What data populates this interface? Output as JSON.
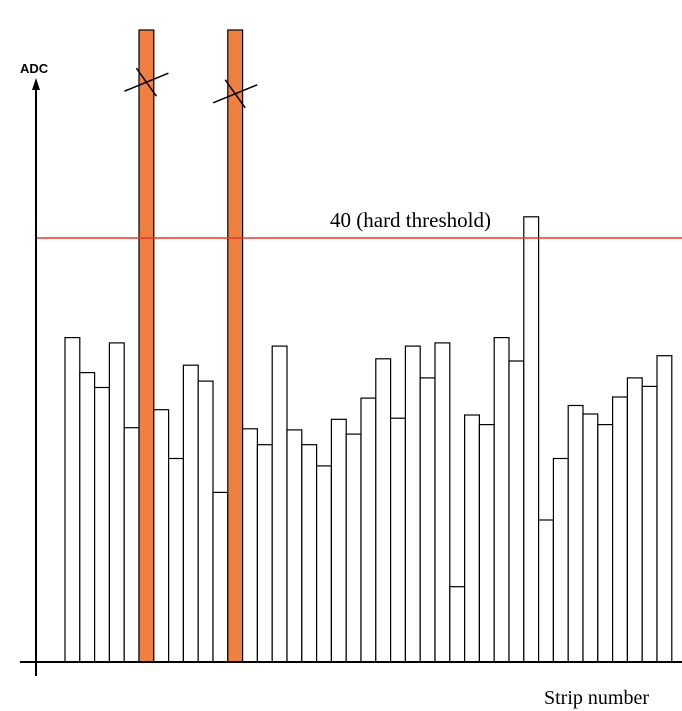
{
  "chart_data": {
    "type": "bar",
    "title": "",
    "xlabel": "Strip number",
    "ylabel": "ADC",
    "ylim": [
      0,
      100
    ],
    "grid": false,
    "legend": "none",
    "threshold": {
      "value": 40,
      "label": "40 (hard threshold)",
      "color": "#e8382c"
    },
    "bar_fill": "#ffffff",
    "bar_stroke": "#000000",
    "highlight_color": "#f08040",
    "strips": [
      {
        "value": 30.6
      },
      {
        "value": 27.3
      },
      {
        "value": 25.9
      },
      {
        "value": 30.1
      },
      {
        "value": 22.1
      },
      {
        "value": 148.5,
        "highlight": true,
        "crossed_at": 54.7
      },
      {
        "value": 23.8
      },
      {
        "value": 19.2
      },
      {
        "value": 28.0
      },
      {
        "value": 26.5
      },
      {
        "value": 16.0
      },
      {
        "value": 148.7,
        "highlight": true,
        "crossed_at": 53.6
      },
      {
        "value": 22.0
      },
      {
        "value": 20.5
      },
      {
        "value": 29.8
      },
      {
        "value": 21.9
      },
      {
        "value": 20.5
      },
      {
        "value": 18.5
      },
      {
        "value": 22.9
      },
      {
        "value": 21.5
      },
      {
        "value": 24.9
      },
      {
        "value": 28.6
      },
      {
        "value": 23.0
      },
      {
        "value": 29.8
      },
      {
        "value": 26.8
      },
      {
        "value": 30.1
      },
      {
        "value": 7.1
      },
      {
        "value": 23.3
      },
      {
        "value": 22.4
      },
      {
        "value": 30.6
      },
      {
        "value": 28.4
      },
      {
        "value": 42.0
      },
      {
        "value": 13.4
      },
      {
        "value": 19.2
      },
      {
        "value": 24.2
      },
      {
        "value": 23.4
      },
      {
        "value": 22.4
      },
      {
        "value": 25.0
      },
      {
        "value": 26.8
      },
      {
        "value": 26.0
      },
      {
        "value": 28.9
      }
    ]
  }
}
